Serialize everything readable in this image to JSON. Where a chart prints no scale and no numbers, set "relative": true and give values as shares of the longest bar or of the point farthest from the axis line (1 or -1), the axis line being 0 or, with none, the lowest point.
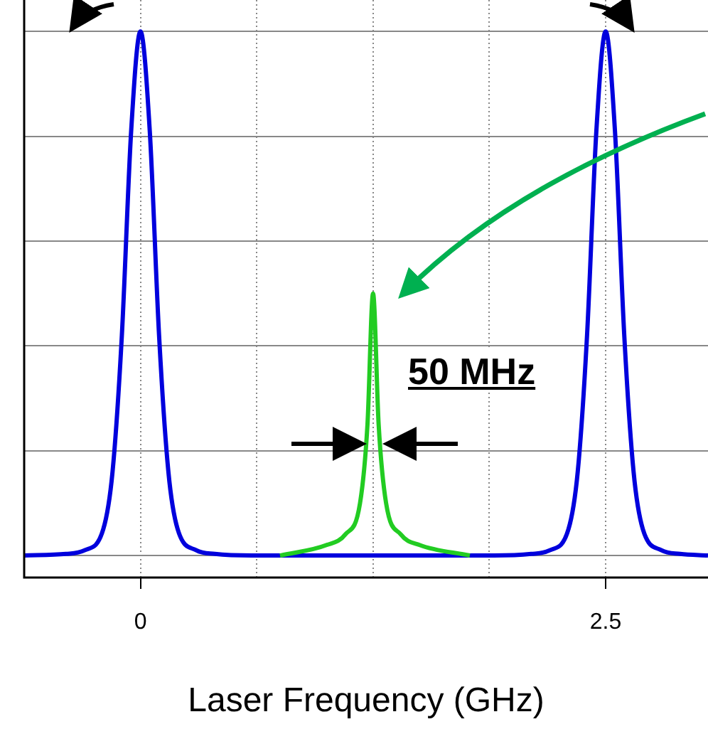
{
  "chart_data": {
    "type": "line",
    "relative": true,
    "xlabel": "Laser Frequency (GHz)",
    "xlim": [
      -0.625,
      3.05
    ],
    "xticks": [
      {
        "value": -0.625,
        "label": null
      },
      0,
      {
        "value": 0.625,
        "label": null
      },
      {
        "value": 1.25,
        "label": null
      },
      {
        "value": 1.875,
        "label": null
      },
      2.5
    ],
    "grid": true,
    "legend": false,
    "marker": "none",
    "line_style": "solid",
    "annotations": [
      "50 MHz"
    ],
    "series": [
      {
        "color": "#0000dd",
        "x": [
          -0.625,
          -0.4,
          -0.3,
          -0.2,
          -0.15,
          -0.1,
          -0.05,
          0,
          0.05,
          0.1,
          0.15,
          0.2,
          0.3,
          0.4,
          0.6,
          1.9,
          2.1,
          2.2,
          2.3,
          2.35,
          2.4,
          2.45,
          2.5,
          2.55,
          2.6,
          2.65,
          2.7,
          2.8,
          2.9,
          3.05
        ],
        "values": [
          0,
          0.003,
          0.01,
          0.05,
          0.16,
          0.42,
          0.81,
          1,
          0.81,
          0.42,
          0.16,
          0.05,
          0.01,
          0.003,
          0,
          0,
          0.003,
          0.01,
          0.05,
          0.16,
          0.42,
          0.81,
          1,
          0.81,
          0.42,
          0.16,
          0.05,
          0.01,
          0.003,
          0
        ]
      },
      {
        "color": "#22cc22",
        "x": [
          0.75,
          1.0,
          1.1,
          1.18,
          1.22,
          1.25,
          1.28,
          1.32,
          1.4,
          1.5,
          1.77
        ],
        "values": [
          0,
          0.02,
          0.04,
          0.1,
          0.25,
          0.5,
          0.25,
          0.1,
          0.04,
          0.02,
          0
        ]
      }
    ]
  }
}
